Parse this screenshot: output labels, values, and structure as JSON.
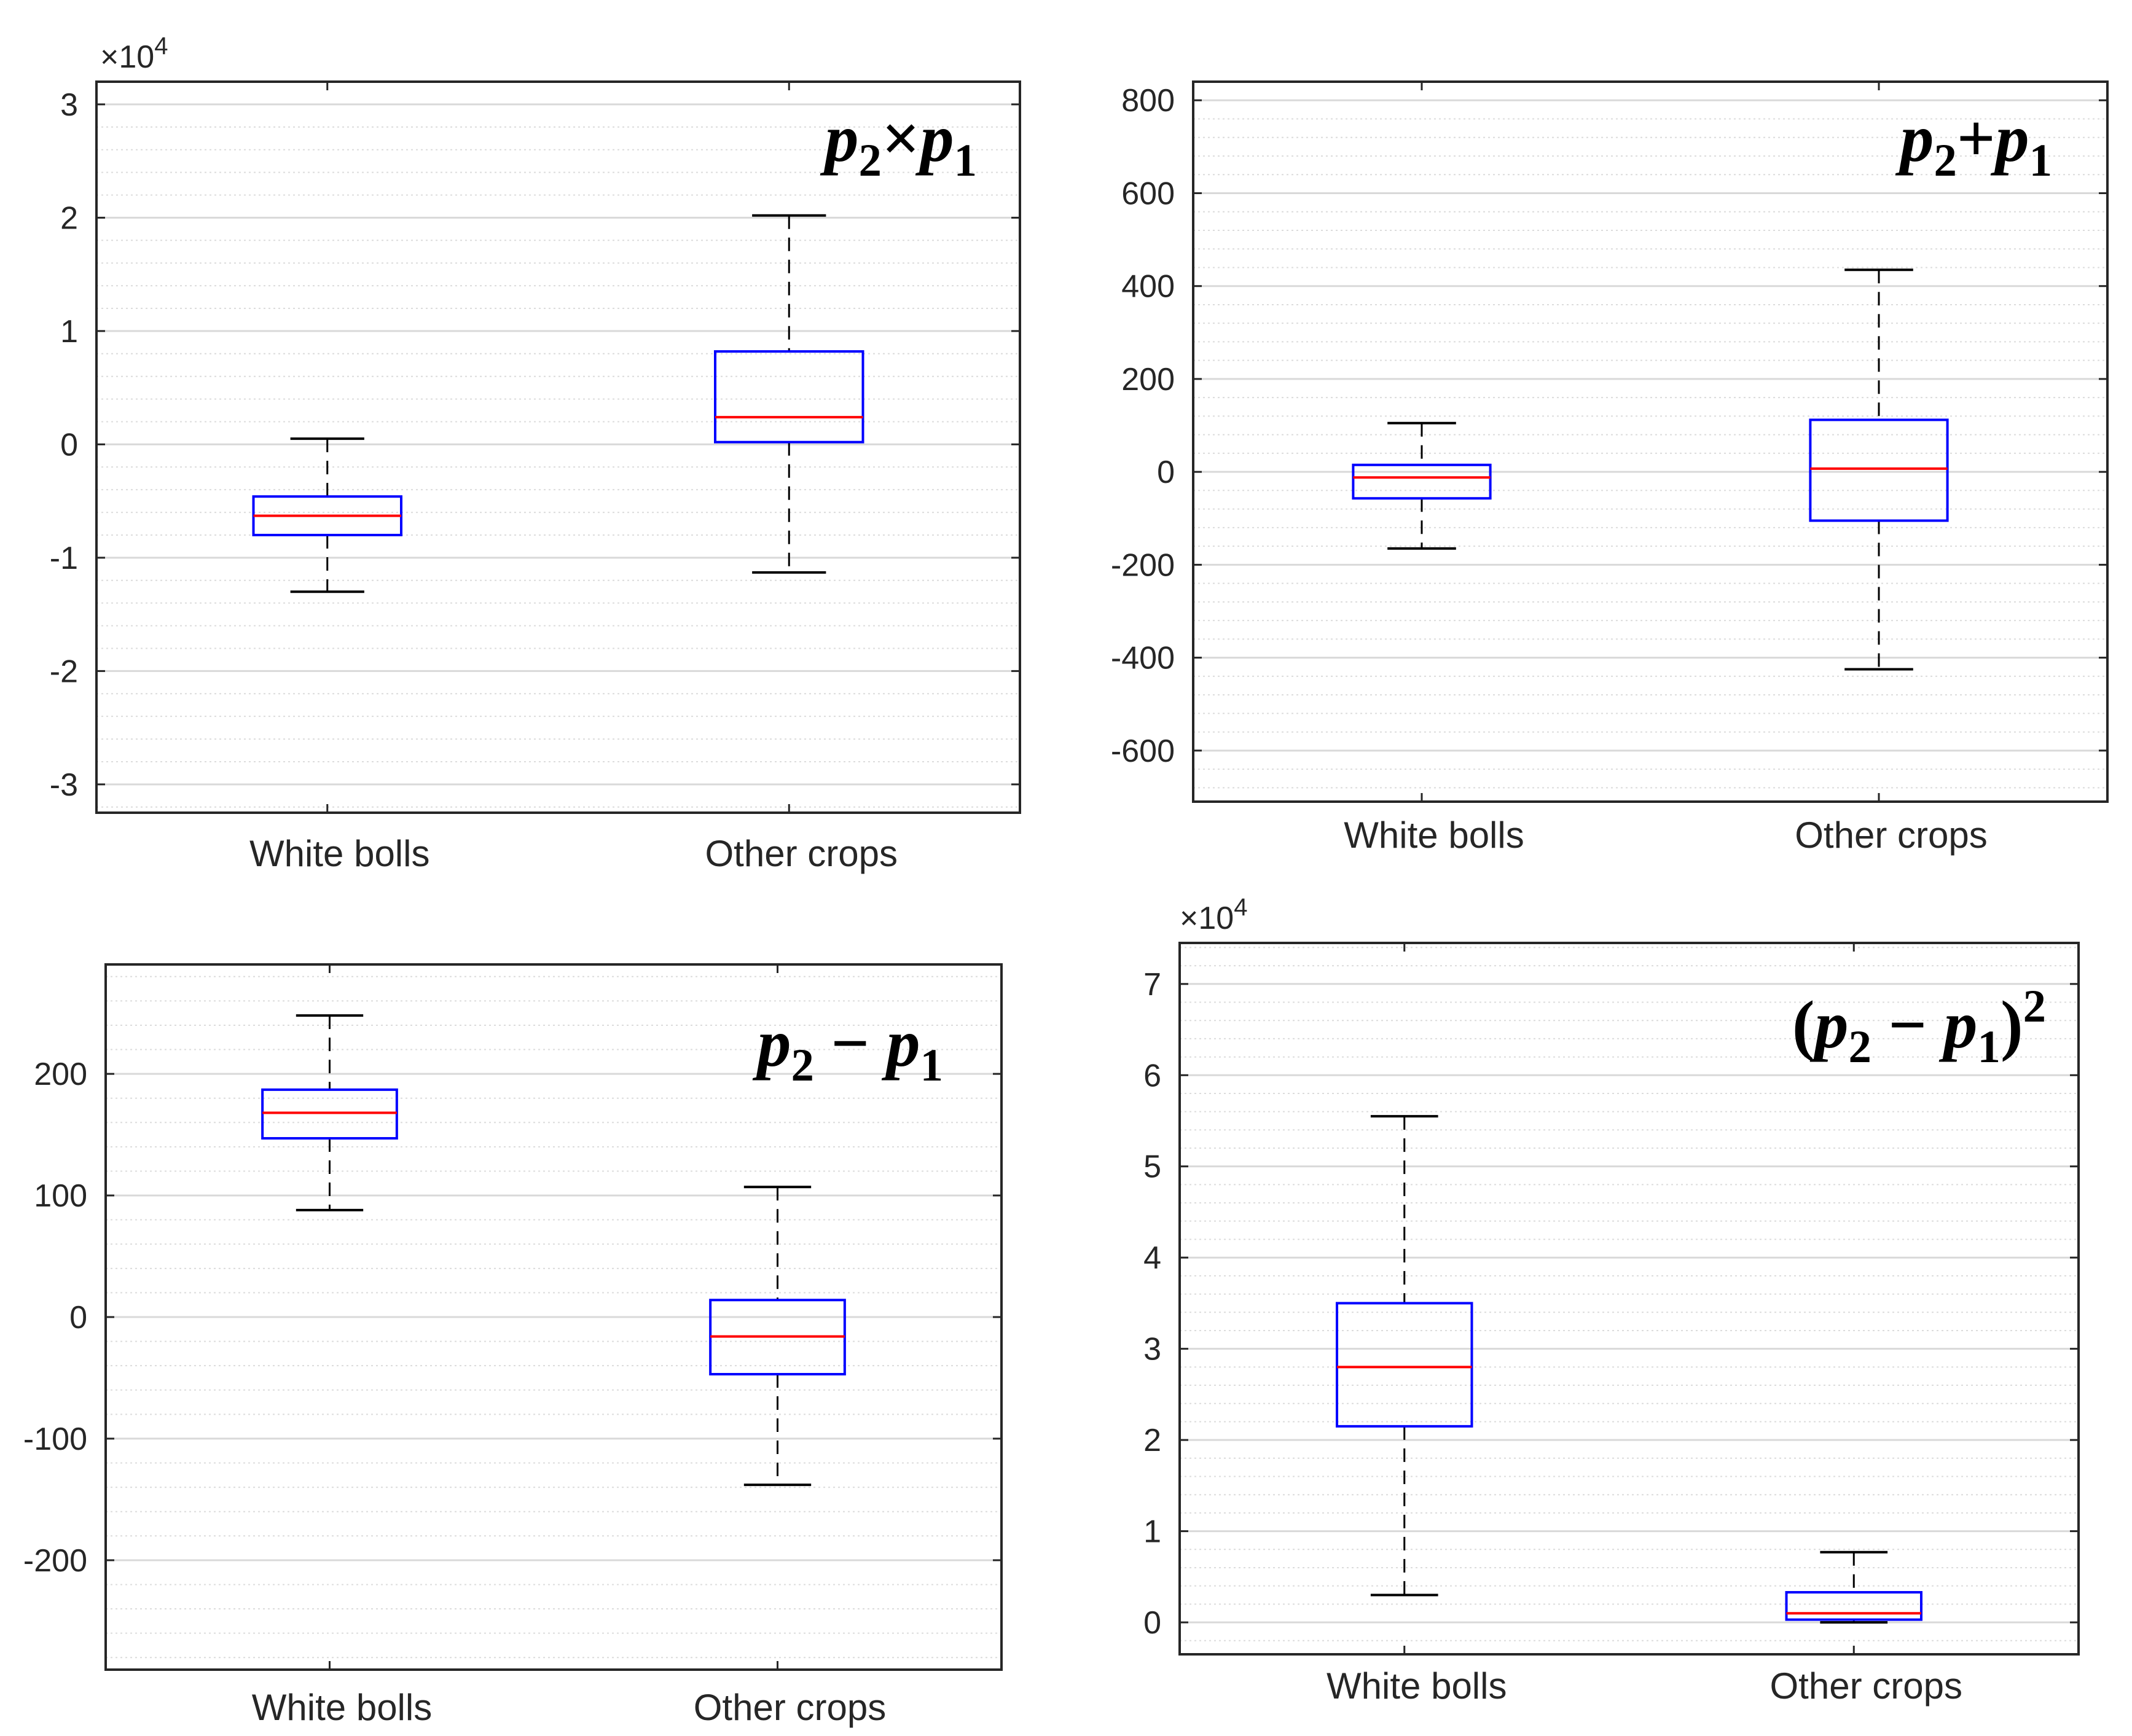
{
  "chart_data": [
    {
      "type": "boxplot",
      "title": "p2×p1",
      "formula": {
        "parts": [
          {
            "t": "p",
            "i": true
          },
          {
            "t": "2",
            "sub": true
          },
          {
            "t": "×",
            "i": false
          },
          {
            "t": "p",
            "i": true
          },
          {
            "t": "1",
            "sub": true
          }
        ]
      },
      "categories": [
        "White bolls",
        "Other crops"
      ],
      "y_exponent": "×10",
      "y_exponent_power": "4",
      "ylim": [
        -3.25,
        3.2
      ],
      "yticks": [
        -3,
        -2,
        -1,
        0,
        1,
        2,
        3
      ],
      "ytick_labels": [
        "-3",
        "-2",
        "-1",
        "0",
        "1",
        "2",
        "3"
      ],
      "boxes": [
        {
          "whisker_low": -1.3,
          "q1": -0.8,
          "median": -0.63,
          "q3": -0.46,
          "whisker_high": 0.05
        },
        {
          "whisker_low": -1.13,
          "q1": 0.02,
          "median": 0.24,
          "q3": 0.82,
          "whisker_high": 2.02
        }
      ]
    },
    {
      "type": "boxplot",
      "title": "p2+p1",
      "formula": {
        "parts": [
          {
            "t": "p",
            "i": true
          },
          {
            "t": "2",
            "sub": true
          },
          {
            "t": "+",
            "i": false
          },
          {
            "t": "p",
            "i": true
          },
          {
            "t": "1",
            "sub": true
          }
        ]
      },
      "categories": [
        "White bolls",
        "Other crops"
      ],
      "ylim": [
        -710,
        840
      ],
      "yticks": [
        -600,
        -400,
        -200,
        0,
        200,
        400,
        600,
        800
      ],
      "ytick_labels": [
        "-600",
        "-400",
        "-200",
        "0",
        "200",
        "400",
        "600",
        "800"
      ],
      "boxes": [
        {
          "whisker_low": -165,
          "q1": -57,
          "median": -12,
          "q3": 15,
          "whisker_high": 105
        },
        {
          "whisker_low": -425,
          "q1": -105,
          "median": 7,
          "q3": 112,
          "whisker_high": 435
        }
      ]
    },
    {
      "type": "boxplot",
      "title": "p2 − p1",
      "formula": {
        "parts": [
          {
            "t": "p",
            "i": true
          },
          {
            "t": "2",
            "sub": true
          },
          {
            "t": " − ",
            "i": false
          },
          {
            "t": "p",
            "i": true
          },
          {
            "t": "1",
            "sub": true
          }
        ]
      },
      "categories": [
        "White bolls",
        "Other crops"
      ],
      "ylim": [
        -290,
        290
      ],
      "yticks": [
        -200,
        -100,
        0,
        100,
        200
      ],
      "ytick_labels": [
        "-200",
        "-100",
        "0",
        "100",
        "200"
      ],
      "boxes": [
        {
          "whisker_low": 88,
          "q1": 147,
          "median": 168,
          "q3": 187,
          "whisker_high": 248
        },
        {
          "whisker_low": -138,
          "q1": -47,
          "median": -16,
          "q3": 14,
          "whisker_high": 107
        }
      ]
    },
    {
      "type": "boxplot",
      "title": "(p2 − p1)²",
      "formula": {
        "parts": [
          {
            "t": "(",
            "i": false
          },
          {
            "t": "p",
            "i": true
          },
          {
            "t": "2",
            "sub": true
          },
          {
            "t": " − ",
            "i": false
          },
          {
            "t": "p",
            "i": true
          },
          {
            "t": "1",
            "sub": true
          },
          {
            "t": ")",
            "i": false
          },
          {
            "t": "2",
            "sup": true
          }
        ]
      },
      "categories": [
        "White bolls",
        "Other crops"
      ],
      "y_exponent": "×10",
      "y_exponent_power": "4",
      "ylim": [
        -0.35,
        7.45
      ],
      "yticks": [
        0,
        1,
        2,
        3,
        4,
        5,
        6,
        7
      ],
      "ytick_labels": [
        "0",
        "1",
        "2",
        "3",
        "4",
        "5",
        "6",
        "7"
      ],
      "boxes": [
        {
          "whisker_low": 0.3,
          "q1": 2.15,
          "median": 2.8,
          "q3": 3.5,
          "whisker_high": 5.55
        },
        {
          "whisker_low": 0.0,
          "q1": 0.03,
          "median": 0.1,
          "q3": 0.33,
          "whisker_high": 0.77
        }
      ]
    }
  ]
}
